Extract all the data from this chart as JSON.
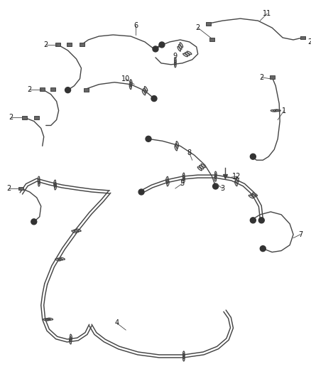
{
  "bg_color": "#ffffff",
  "line_color": "#444444",
  "label_color": "#111111",
  "figsize": [
    4.38,
    5.33
  ],
  "dpi": 100,
  "lw_main": 1.3,
  "lw_thin": 1.0,
  "lw_double": 1.1
}
